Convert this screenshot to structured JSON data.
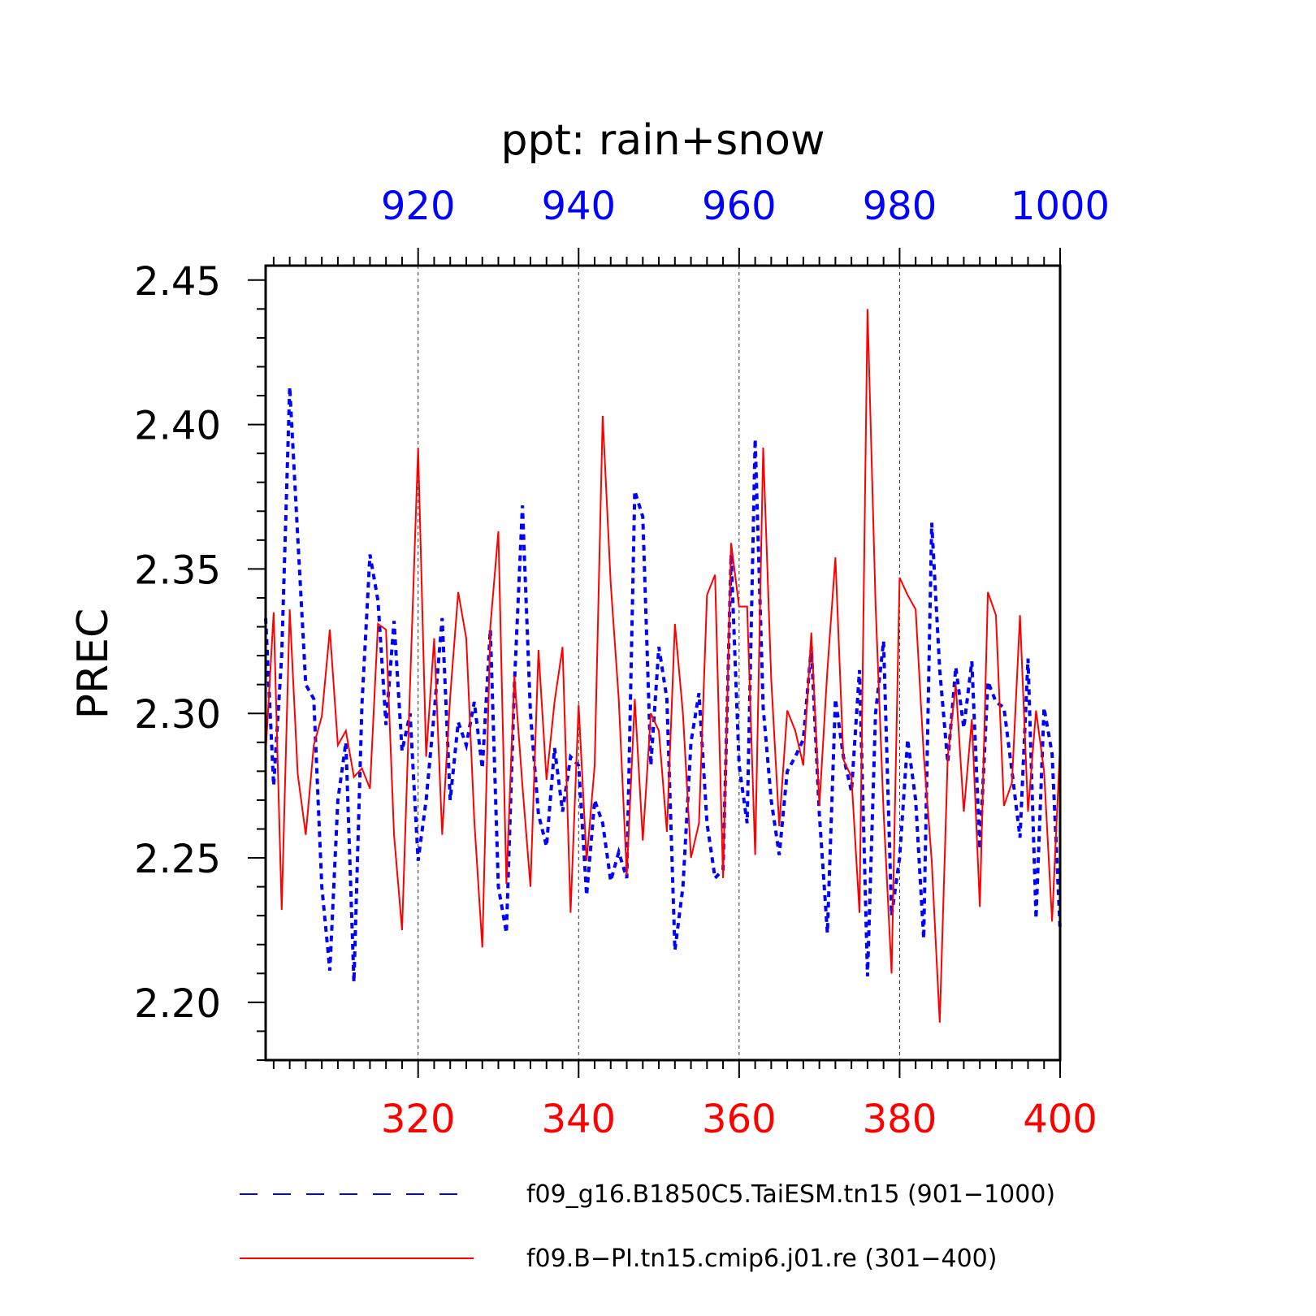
{
  "chart_data": {
    "type": "line",
    "title": "ppt: rain+snow",
    "ylabel": "PREC",
    "ylim": [
      2.18,
      2.455
    ],
    "y_ticks": [
      "2.20",
      "2.25",
      "2.30",
      "2.35",
      "2.40",
      "2.45"
    ],
    "bottom_axis": {
      "range": [
        301,
        400
      ],
      "ticks": [
        "320",
        "340",
        "360",
        "380",
        "400"
      ],
      "color": "#ff0000"
    },
    "top_axis": {
      "range": [
        901,
        1000
      ],
      "ticks": [
        "920",
        "940",
        "960",
        "980",
        "1000"
      ],
      "color": "#0000ff"
    },
    "grid": "vertical dashed at major ticks",
    "series": [
      {
        "name": "f09_g16.B1850C5.TaiESM.tn15 (901−1000)",
        "color": "#0000ff",
        "style": "dashed",
        "x_start": 901,
        "values": [
          2.333,
          2.275,
          2.32,
          2.413,
          2.361,
          2.31,
          2.305,
          2.24,
          2.211,
          2.27,
          2.29,
          2.207,
          2.303,
          2.355,
          2.339,
          2.296,
          2.332,
          2.287,
          2.3,
          2.249,
          2.27,
          2.3,
          2.333,
          2.27,
          2.297,
          2.289,
          2.304,
          2.281,
          2.329,
          2.24,
          2.224,
          2.31,
          2.372,
          2.3,
          2.265,
          2.254,
          2.288,
          2.266,
          2.285,
          2.282,
          2.237,
          2.27,
          2.262,
          2.242,
          2.252,
          2.243,
          2.377,
          2.368,
          2.282,
          2.323,
          2.305,
          2.218,
          2.24,
          2.29,
          2.307,
          2.262,
          2.243,
          2.246,
          2.355,
          2.282,
          2.262,
          2.395,
          2.302,
          2.27,
          2.251,
          2.28,
          2.285,
          2.291,
          2.323,
          2.265,
          2.224,
          2.305,
          2.285,
          2.273,
          2.315,
          2.209,
          2.3,
          2.325,
          2.23,
          2.25,
          2.291,
          2.27,
          2.222,
          2.366,
          2.315,
          2.283,
          2.316,
          2.295,
          2.318,
          2.253,
          2.311,
          2.304,
          2.302,
          2.28,
          2.257,
          2.319,
          2.229,
          2.302,
          2.286,
          2.225
        ]
      },
      {
        "name": "f09.B−PI.tn15.cmip6.j01.re (301−400)",
        "color": "#ff0000",
        "style": "solid",
        "x_start": 301,
        "values": [
          2.286,
          2.335,
          2.232,
          2.336,
          2.279,
          2.258,
          2.289,
          2.299,
          2.329,
          2.289,
          2.294,
          2.278,
          2.281,
          2.274,
          2.331,
          2.329,
          2.258,
          2.225,
          2.31,
          2.392,
          2.285,
          2.326,
          2.258,
          2.306,
          2.342,
          2.326,
          2.263,
          2.219,
          2.33,
          2.363,
          2.241,
          2.313,
          2.275,
          2.24,
          2.322,
          2.277,
          2.304,
          2.323,
          2.231,
          2.303,
          2.249,
          2.282,
          2.403,
          2.345,
          2.305,
          2.244,
          2.305,
          2.256,
          2.3,
          2.294,
          2.259,
          2.331,
          2.3,
          2.25,
          2.262,
          2.341,
          2.348,
          2.243,
          2.359,
          2.337,
          2.337,
          2.251,
          2.392,
          2.312,
          2.261,
          2.301,
          2.294,
          2.282,
          2.328,
          2.268,
          2.315,
          2.354,
          2.284,
          2.278,
          2.231,
          2.44,
          2.338,
          2.266,
          2.21,
          2.347,
          2.341,
          2.336,
          2.286,
          2.249,
          2.193,
          2.285,
          2.31,
          2.266,
          2.298,
          2.233,
          2.342,
          2.334,
          2.268,
          2.276,
          2.334,
          2.266,
          2.301,
          2.28,
          2.228,
          2.289
        ]
      }
    ],
    "legend_position": "bottom"
  }
}
